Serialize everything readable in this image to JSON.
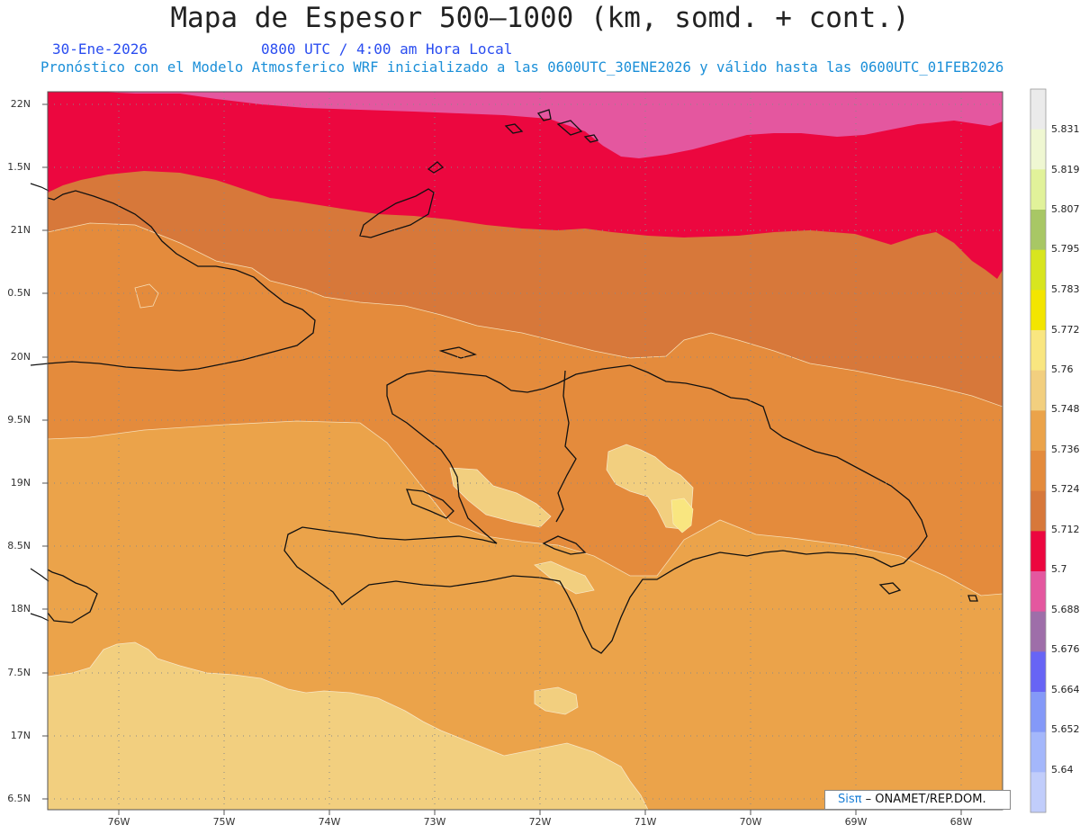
{
  "header": {
    "title": "Mapa de Espesor 500–1000 (km, somd. + cont.)",
    "date": "30-Ene-2026",
    "time": "0800 UTC / 4:00 am Hora Local",
    "model_info": "Pronóstico con el Modelo Atmosferico WRF inicializado a las 0600UTC_30ENE2026 y válido hasta las  0600UTC_01FEB2026"
  },
  "axes": {
    "lat_labels": [
      "22N",
      "1.5N",
      "21N",
      "0.5N",
      "20N",
      "9.5N",
      "19N",
      "8.5N",
      "18N",
      "7.5N",
      "17N",
      "6.5N"
    ],
    "lon_labels": [
      "76W",
      "75W",
      "74W",
      "73W",
      "72W",
      "71W",
      "70W",
      "69W",
      "68W"
    ]
  },
  "colorbar": {
    "levels": [
      "5.831",
      "5.819",
      "5.807",
      "5.795",
      "5.783",
      "5.772",
      "5.76",
      "5.748",
      "5.736",
      "5.724",
      "5.712",
      "5.7",
      "5.688",
      "5.676",
      "5.664",
      "5.652",
      "5.64"
    ],
    "colors": [
      "#ebebeb",
      "#eff7d2",
      "#e1f29a",
      "#a8c765",
      "#d8e51f",
      "#f3e500",
      "#f9e680",
      "#f2cf7f",
      "#eba34a",
      "#e48b3c",
      "#d7783a",
      "#ec073f",
      "#e4579f",
      "#9e6ea9",
      "#6764f5",
      "#8499f8",
      "#a4b7fb",
      "#c1cdfb"
    ]
  },
  "shading": {
    "pink": "#e4579f",
    "red": "#ec073f",
    "dark_orange": "#d7783a",
    "orange": "#e48b3c",
    "light_orange": "#eba34a",
    "pale": "#f2cf7f",
    "lightest": "#f9e680"
  },
  "credit": {
    "sis": "Sisπ",
    "org": " – ONAMET/REP.DOM."
  }
}
